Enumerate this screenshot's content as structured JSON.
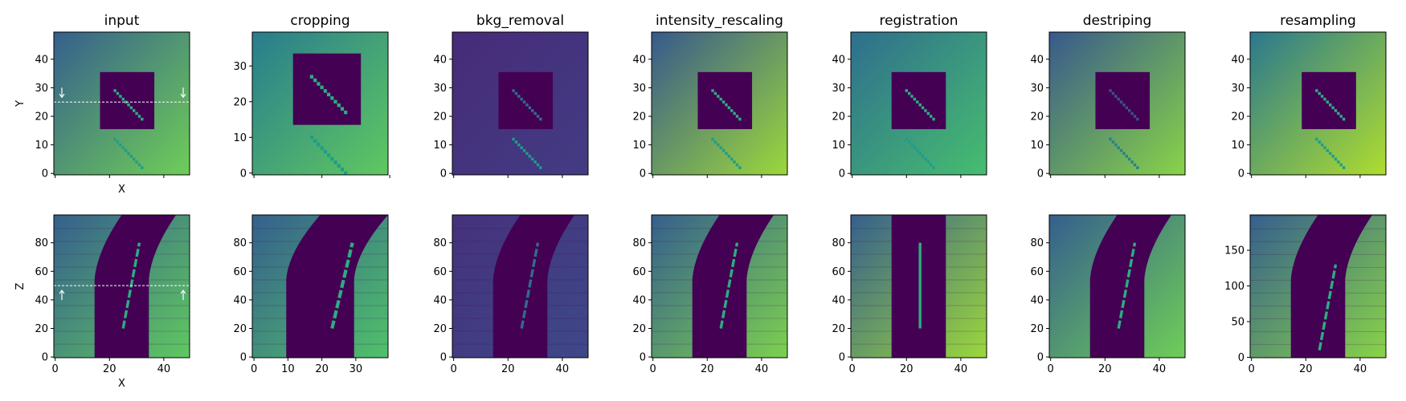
{
  "colormap": "viridis",
  "chart_data": {
    "type": "heatmap",
    "panels": [
      {
        "row": 0,
        "col": 0,
        "title": "input",
        "xlim": [
          0,
          49
        ],
        "ylim": [
          0,
          49
        ],
        "xlabel": "X",
        "ylabel": "Y",
        "yticks": [
          0,
          10,
          20,
          30,
          40
        ],
        "xticks": [
          0,
          20,
          40
        ],
        "show_xticklabels": false,
        "rect": {
          "x": [
            17,
            37
          ],
          "y": [
            15,
            35
          ]
        },
        "line_inside": [
          [
            22,
            29
          ],
          [
            32,
            19
          ]
        ],
        "line_outside": [
          [
            22,
            12
          ],
          [
            32,
            2
          ]
        ],
        "annotation": {
          "type": "dashed-line",
          "y": 25
        }
      },
      {
        "row": 0,
        "col": 1,
        "title": "cropping",
        "xlim": [
          0,
          39
        ],
        "ylim": [
          0,
          39
        ],
        "xlabel": "",
        "ylabel": "",
        "yticks": [
          0,
          10,
          20,
          30
        ],
        "xticks": [
          0,
          20,
          40
        ],
        "show_xticklabels": false,
        "rect": {
          "x": [
            12,
            32
          ],
          "y": [
            13,
            33
          ]
        },
        "line_inside": [
          [
            17,
            27
          ],
          [
            27,
            17
          ]
        ],
        "line_outside": [
          [
            17,
            10
          ],
          [
            27,
            0
          ]
        ]
      },
      {
        "row": 0,
        "col": 2,
        "title": "bkg_removal",
        "xlim": [
          0,
          49
        ],
        "ylim": [
          0,
          49
        ],
        "xlabel": "",
        "ylabel": "",
        "yticks": [
          0,
          10,
          20,
          30,
          40
        ],
        "xticks": [
          0,
          20,
          40
        ],
        "show_xticklabels": false,
        "rect": {
          "x": [
            17,
            37
          ],
          "y": [
            15,
            35
          ]
        },
        "line_inside": [
          [
            22,
            29
          ],
          [
            32,
            19
          ]
        ],
        "line_outside": [
          [
            22,
            12
          ],
          [
            32,
            2
          ]
        ]
      },
      {
        "row": 0,
        "col": 3,
        "title": "intensity_rescaling",
        "xlim": [
          0,
          49
        ],
        "ylim": [
          0,
          49
        ],
        "xlabel": "",
        "ylabel": "",
        "yticks": [
          0,
          10,
          20,
          30,
          40
        ],
        "xticks": [
          0,
          20,
          40
        ],
        "show_xticklabels": false,
        "rect": {
          "x": [
            17,
            37
          ],
          "y": [
            15,
            35
          ]
        },
        "line_inside": [
          [
            22,
            29
          ],
          [
            32,
            19
          ]
        ],
        "line_outside": [
          [
            22,
            12
          ],
          [
            32,
            2
          ]
        ]
      },
      {
        "row": 0,
        "col": 4,
        "title": "registration",
        "xlim": [
          0,
          49
        ],
        "ylim": [
          0,
          49
        ],
        "xlabel": "",
        "ylabel": "",
        "yticks": [
          0,
          10,
          20,
          30,
          40
        ],
        "xticks": [
          0,
          20,
          40
        ],
        "show_xticklabels": false,
        "rect": {
          "x": [
            15,
            35
          ],
          "y": [
            15,
            35
          ]
        },
        "line_inside": [
          [
            20,
            29
          ],
          [
            30,
            19
          ]
        ],
        "line_outside": [
          [
            20,
            12
          ],
          [
            30,
            2
          ]
        ]
      },
      {
        "row": 0,
        "col": 5,
        "title": "destriping",
        "xlim": [
          0,
          49
        ],
        "ylim": [
          0,
          49
        ],
        "xlabel": "",
        "ylabel": "",
        "yticks": [
          0,
          10,
          20,
          30,
          40
        ],
        "xticks": [
          0,
          20,
          40
        ],
        "show_xticklabels": false,
        "rect": {
          "x": [
            17,
            37
          ],
          "y": [
            15,
            35
          ]
        },
        "line_inside": [
          [
            22,
            29
          ],
          [
            32,
            19
          ]
        ],
        "line_outside": [
          [
            22,
            12
          ],
          [
            32,
            2
          ]
        ]
      },
      {
        "row": 0,
        "col": 6,
        "title": "resampling",
        "xlim": [
          0,
          49
        ],
        "ylim": [
          0,
          49
        ],
        "xlabel": "",
        "ylabel": "",
        "yticks": [
          0,
          10,
          20,
          30,
          40
        ],
        "xticks": [
          0,
          20,
          40
        ],
        "show_xticklabels": false,
        "rect": {
          "x": [
            19,
            39
          ],
          "y": [
            15,
            35
          ]
        },
        "line_inside": [
          [
            24,
            29
          ],
          [
            34,
            19
          ]
        ],
        "line_outside": [
          [
            24,
            12
          ],
          [
            34,
            2
          ]
        ]
      },
      {
        "row": 1,
        "col": 0,
        "title": "",
        "xlim": [
          0,
          49
        ],
        "ylim": [
          0,
          99
        ],
        "xlabel": "X",
        "ylabel": "Z",
        "yticks": [
          0,
          20,
          40,
          60,
          80
        ],
        "xticks": [
          0,
          20,
          40
        ],
        "show_xticklabels": true,
        "band": {
          "bottom": [
            15,
            35
          ],
          "top": [
            25,
            45
          ]
        },
        "stripe_every": 9,
        "line": [
          [
            25,
            20
          ],
          [
            31,
            80
          ]
        ],
        "annotation": {
          "type": "dashed-line",
          "y": 50
        }
      },
      {
        "row": 1,
        "col": 1,
        "title": "",
        "xlim": [
          0,
          39
        ],
        "ylim": [
          0,
          99
        ],
        "xlabel": "",
        "ylabel": "",
        "yticks": [
          0,
          20,
          40,
          60,
          80
        ],
        "xticks": [
          0,
          10,
          20,
          30
        ],
        "show_xticklabels": true,
        "band": {
          "bottom": [
            10,
            30
          ],
          "top": [
            20,
            40
          ]
        },
        "stripe_every": 9,
        "line": [
          [
            23,
            20
          ],
          [
            29,
            80
          ]
        ]
      },
      {
        "row": 1,
        "col": 2,
        "title": "",
        "xlim": [
          0,
          49
        ],
        "ylim": [
          0,
          99
        ],
        "xlabel": "",
        "ylabel": "",
        "yticks": [
          0,
          20,
          40,
          60,
          80
        ],
        "xticks": [
          0,
          20,
          40
        ],
        "show_xticklabels": true,
        "band": {
          "bottom": [
            15,
            35
          ],
          "top": [
            25,
            45
          ]
        },
        "stripe_every": 9,
        "line": [
          [
            25,
            20
          ],
          [
            31,
            80
          ]
        ]
      },
      {
        "row": 1,
        "col": 3,
        "title": "",
        "xlim": [
          0,
          49
        ],
        "ylim": [
          0,
          99
        ],
        "xlabel": "",
        "ylabel": "",
        "yticks": [
          0,
          20,
          40,
          60,
          80
        ],
        "xticks": [
          0,
          20,
          40
        ],
        "show_xticklabels": true,
        "band": {
          "bottom": [
            15,
            35
          ],
          "top": [
            25,
            45
          ]
        },
        "stripe_every": 9,
        "line": [
          [
            25,
            20
          ],
          [
            31,
            80
          ]
        ]
      },
      {
        "row": 1,
        "col": 4,
        "title": "",
        "xlim": [
          0,
          49
        ],
        "ylim": [
          0,
          99
        ],
        "xlabel": "",
        "ylabel": "",
        "yticks": [
          0,
          20,
          40,
          60,
          80
        ],
        "xticks": [
          0,
          20,
          40
        ],
        "show_xticklabels": true,
        "band": {
          "bottom": [
            15,
            35
          ],
          "top": [
            15,
            35
          ]
        },
        "stripe_every": 9,
        "line": [
          [
            25,
            20
          ],
          [
            25,
            80
          ]
        ]
      },
      {
        "row": 1,
        "col": 5,
        "title": "",
        "xlim": [
          0,
          49
        ],
        "ylim": [
          0,
          99
        ],
        "xlabel": "",
        "ylabel": "",
        "yticks": [
          0,
          20,
          40,
          60,
          80
        ],
        "xticks": [
          0,
          20,
          40
        ],
        "show_xticklabels": true,
        "band": {
          "bottom": [
            15,
            35
          ],
          "top": [
            25,
            45
          ]
        },
        "stripe_every": 0,
        "line": [
          [
            25,
            20
          ],
          [
            31,
            80
          ]
        ]
      },
      {
        "row": 1,
        "col": 6,
        "title": "",
        "xlim": [
          0,
          49
        ],
        "ylim": [
          0,
          199
        ],
        "xlabel": "",
        "ylabel": "",
        "yticks": [
          0,
          50,
          100,
          150
        ],
        "xticks": [
          0,
          20,
          40
        ],
        "show_xticklabels": true,
        "band": {
          "bottom": [
            15,
            35
          ],
          "top": [
            25,
            45
          ]
        },
        "stripe_every": 18,
        "line": [
          [
            25,
            10
          ],
          [
            31,
            130
          ]
        ]
      }
    ]
  }
}
